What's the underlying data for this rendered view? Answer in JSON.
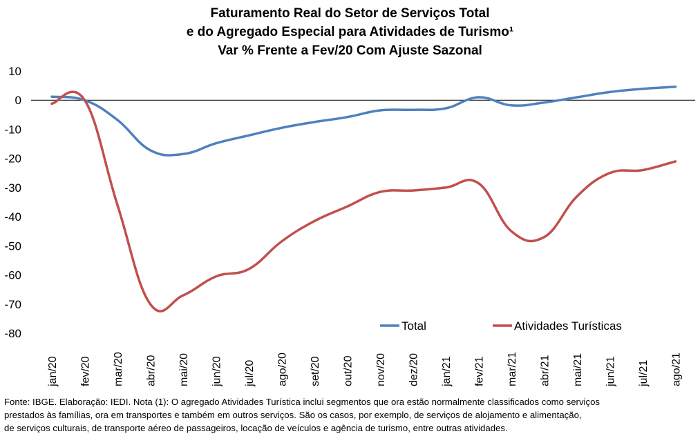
{
  "title": {
    "line1": "Faturamento Real do Setor de Serviços Total",
    "line2": "e do Agregado Especial para Atividades de Turismo¹",
    "line3": "Var % Frente a Fev/20 Com Ajuste Sazonal"
  },
  "source": {
    "line1": "Fonte: IBGE. Elaboração: IEDI. Nota (1): O agregado Atividades Turística inclui segmentos que ora estão normalmente  classificados como serviços",
    "line2": "prestados às famílias, ora em transportes  e também  em outros  serviços. São os casos, por exemplo,  de serviços de alojamento  e alimentação,",
    "line3": "de serviços culturais, de transporte  aéreo de passageiros, locação de veículos e agência de turismo,  entre  outras  atividades."
  },
  "chart_data": {
    "type": "line",
    "categories": [
      "jan/20",
      "fev/20",
      "mar/20",
      "abr/20",
      "mai/20",
      "jun/20",
      "jul/20",
      "ago/20",
      "set/20",
      "out/20",
      "nov/20",
      "dez/20",
      "jan/21",
      "fev/21",
      "mar/21",
      "abr/21",
      "mai/21",
      "jun/21",
      "jul/21",
      "ago/21"
    ],
    "series": [
      {
        "name": "Total",
        "color": "#4f81bd",
        "values": [
          1.2,
          0.0,
          -6.8,
          -17.2,
          -18.5,
          -14.8,
          -12.1,
          -9.5,
          -7.5,
          -5.8,
          -3.5,
          -3.3,
          -2.8,
          1.0,
          -1.8,
          -0.8,
          1.0,
          2.8,
          3.9,
          4.6
        ]
      },
      {
        "name": "Atividades Turísticas",
        "color": "#c0504d",
        "values": [
          -1.2,
          0.0,
          -36.0,
          -70.0,
          -67.0,
          -60.5,
          -58.0,
          -48.5,
          -41.5,
          -36.5,
          -31.5,
          -31.0,
          -30.0,
          -28.5,
          -45.0,
          -47.0,
          -33.0,
          -25.0,
          -24.0,
          -21.0
        ]
      }
    ],
    "ylim": [
      -80,
      10
    ],
    "yticks": [
      "10",
      "0",
      "-10",
      "-20",
      "-30",
      "-40",
      "-50",
      "-60",
      "-70",
      "-80"
    ],
    "zero_line": true,
    "grid": false,
    "legend_position": "bottom-right"
  }
}
